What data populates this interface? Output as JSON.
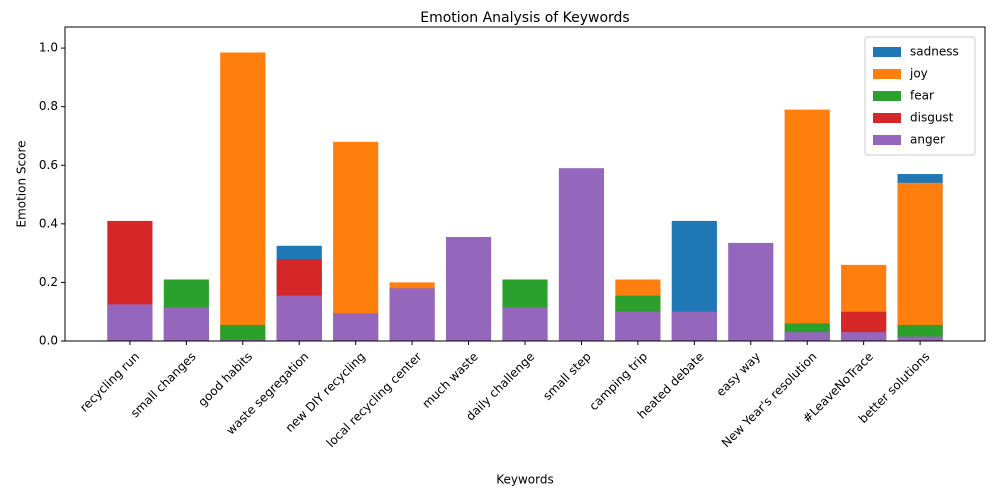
{
  "chart_data": {
    "type": "bar",
    "title": "Emotion Analysis of Keywords",
    "x_label": "Keywords",
    "y_label": "Emotion Score",
    "categories": [
      "recycling run",
      "small changes",
      "good habits",
      "waste segregation",
      "new DIY recycling",
      "local recycling center",
      "much waste",
      "daily challenge",
      "small step",
      "camping trip",
      "heated debate",
      "easy way",
      "New Year's resolution",
      "#LeaveNoTrace",
      "better solutions"
    ],
    "series": [
      {
        "name": "sadness",
        "color": "#1f77b4",
        "values": [
          0,
          0,
          0,
          0.325,
          0,
          0,
          0,
          0,
          0,
          0,
          0.41,
          0,
          0,
          0,
          0.57
        ]
      },
      {
        "name": "joy",
        "color": "#ff7f0e",
        "values": [
          0,
          0,
          0.985,
          0,
          0.68,
          0.2,
          0,
          0,
          0,
          0.21,
          0,
          0,
          0.79,
          0.26,
          0.54
        ]
      },
      {
        "name": "fear",
        "color": "#2ca02c",
        "values": [
          0,
          0.21,
          0.055,
          0,
          0,
          0,
          0,
          0.21,
          0,
          0.155,
          0,
          0,
          0.06,
          0,
          0.055
        ]
      },
      {
        "name": "disgust",
        "color": "#d62728",
        "values": [
          0.41,
          0,
          0,
          0.28,
          0,
          0,
          0,
          0,
          0,
          0,
          0,
          0,
          0,
          0.1,
          0
        ]
      },
      {
        "name": "anger",
        "color": "#9467bd",
        "values": [
          0.125,
          0.115,
          0.005,
          0.155,
          0.095,
          0.18,
          0.355,
          0.115,
          0.59,
          0.1,
          0.1,
          0.335,
          0.03,
          0.03,
          0.015
        ]
      }
    ],
    "ylim": [
      0,
      1.072
    ],
    "yticks": [
      {
        "value": 0,
        "label": "0.0"
      },
      0.2,
      0.4,
      0.6,
      0.8,
      {
        "value": 1,
        "label": "1.0"
      }
    ],
    "legend_position": "upper right"
  }
}
